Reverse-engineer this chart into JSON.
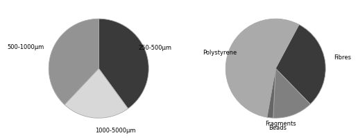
{
  "pie1": {
    "labels": [
      "250-500μm",
      "1000-5000μm",
      "500-1000μm"
    ],
    "values": [
      40,
      22,
      38
    ],
    "colors": [
      "#3a3a3a",
      "#d8d8d8",
      "#939393"
    ],
    "startangle": 90
  },
  "pie2": {
    "labels": [
      "Fibres",
      "Fragments",
      "Beads",
      "Polystyrene"
    ],
    "values": [
      30,
      13,
      2,
      55
    ],
    "colors": [
      "#3a3a3a",
      "#808080",
      "#666666",
      "#aaaaaa"
    ],
    "startangle": 62
  },
  "background_color": "#ffffff",
  "edge_color": "#aaaaaa",
  "linewidth": 0.6,
  "text_fontsize": 6.0
}
